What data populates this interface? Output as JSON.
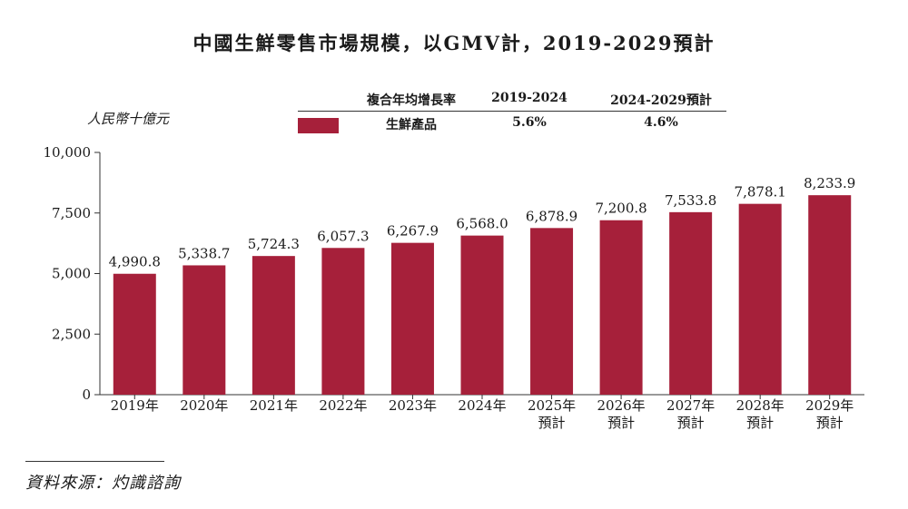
{
  "title": "中國生鮮零售市場規模，以GMV計，2019-2029預計",
  "unit_label": "人民幣十億元",
  "cagr_table": {
    "header": "複合年均增長率",
    "periods": [
      "2019-2024",
      "2024-2029預計"
    ],
    "row_label": "生鮮產品",
    "values": [
      "5.6%",
      "4.6%"
    ]
  },
  "source": "資料來源：灼識諮詢",
  "colors": {
    "bar": "#a6203a",
    "axis": "#333333"
  },
  "chart_data": {
    "type": "bar",
    "title": "中國生鮮零售市場規模，以GMV計，2019-2029預計",
    "ylabel": "人民幣十億元",
    "ylim": [
      0,
      10000
    ],
    "yticks": [
      "0",
      "2,500",
      "5,000",
      "7,500",
      "10,000"
    ],
    "ytick_values": [
      0,
      2500,
      5000,
      7500,
      10000
    ],
    "categories": [
      "2019年",
      "2020年",
      "2021年",
      "2022年",
      "2023年",
      "2024年",
      "2025年\n預計",
      "2026年\n預計",
      "2027年\n預計",
      "2028年\n預計",
      "2029年\n預計"
    ],
    "values": [
      4990.8,
      5338.7,
      5724.3,
      6057.3,
      6267.9,
      6568.0,
      6878.9,
      7200.8,
      7533.8,
      7878.1,
      8233.9
    ],
    "value_labels": [
      "4,990.8",
      "5,338.7",
      "5,724.3",
      "6,057.3",
      "6,267.9",
      "6,568.0",
      "6,878.9",
      "7,200.8",
      "7,533.8",
      "7,878.1",
      "8,233.9"
    ],
    "series": [
      {
        "name": "生鮮產品"
      }
    ],
    "grid": false
  }
}
